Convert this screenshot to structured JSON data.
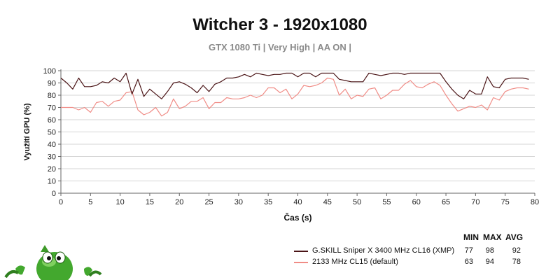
{
  "title": "Witcher 3 - 1920x1080",
  "subtitle": "GTX 1080 Ti | Very High | AA ON |",
  "legend": {
    "headers": [
      "MIN",
      "MAX",
      "AVG"
    ],
    "rows": [
      {
        "name": "G.SKILL Sniper X 3400 MHz CL16 (XMP)",
        "min": "77",
        "max": "98",
        "avg": "92",
        "color": "#4a1416"
      },
      {
        "name": "2133 MHz CL15 (default)",
        "min": "63",
        "max": "94",
        "avg": "78",
        "color": "#f08c86"
      }
    ]
  },
  "mascot_icon": "green-cartoon-mascot",
  "chart_data": {
    "type": "line",
    "xlabel": "Čas (s)",
    "ylabel": "Využití GPU (%)",
    "xlim": [
      0,
      80
    ],
    "ylim": [
      0,
      100
    ],
    "xticks": [
      0,
      5,
      10,
      15,
      20,
      25,
      30,
      35,
      40,
      45,
      50,
      55,
      60,
      65,
      70,
      75,
      80
    ],
    "yticks": [
      0,
      10,
      20,
      30,
      40,
      50,
      60,
      70,
      80,
      90,
      100
    ],
    "grid": true,
    "legend_position": "bottom-right",
    "series": [
      {
        "name": "G.SKILL Sniper X 3400 MHz CL16 (XMP)",
        "color": "#4a1416",
        "x": [
          0,
          1,
          2,
          3,
          4,
          5,
          6,
          7,
          8,
          9,
          10,
          11,
          12,
          13,
          14,
          15,
          16,
          17,
          18,
          19,
          20,
          21,
          22,
          23,
          24,
          25,
          26,
          27,
          28,
          29,
          30,
          31,
          32,
          33,
          34,
          35,
          36,
          37,
          38,
          39,
          40,
          41,
          42,
          43,
          44,
          45,
          46,
          47,
          48,
          49,
          50,
          51,
          52,
          53,
          54,
          55,
          56,
          57,
          58,
          59,
          60,
          61,
          62,
          63,
          64,
          65,
          66,
          67,
          68,
          69,
          70,
          71,
          72,
          73,
          74,
          75,
          76,
          77,
          78,
          79
        ],
        "values": [
          94,
          90,
          85,
          94,
          87,
          87,
          88,
          91,
          90,
          94,
          91,
          98,
          81,
          93,
          79,
          85,
          81,
          77,
          83,
          90,
          91,
          89,
          86,
          82,
          88,
          83,
          89,
          91,
          94,
          94,
          95,
          97,
          95,
          98,
          97,
          96,
          97,
          97,
          98,
          98,
          95,
          98,
          98,
          95,
          98,
          98,
          98,
          93,
          92,
          91,
          91,
          91,
          98,
          97,
          96,
          97,
          98,
          98,
          97,
          98,
          98,
          98,
          98,
          98,
          98,
          91,
          85,
          80,
          77,
          84,
          81,
          81,
          95,
          87,
          86,
          93,
          94,
          94,
          94,
          93
        ]
      },
      {
        "name": "2133 MHz CL15 (default)",
        "color": "#f08c86",
        "x": [
          0,
          1,
          2,
          3,
          4,
          5,
          6,
          7,
          8,
          9,
          10,
          11,
          12,
          13,
          14,
          15,
          16,
          17,
          18,
          19,
          20,
          21,
          22,
          23,
          24,
          25,
          26,
          27,
          28,
          29,
          30,
          31,
          32,
          33,
          34,
          35,
          36,
          37,
          38,
          39,
          40,
          41,
          42,
          43,
          44,
          45,
          46,
          47,
          48,
          49,
          50,
          51,
          52,
          53,
          54,
          55,
          56,
          57,
          58,
          59,
          60,
          61,
          62,
          63,
          64,
          65,
          66,
          67,
          68,
          69,
          70,
          71,
          72,
          73,
          74,
          75,
          76,
          77,
          78,
          79
        ],
        "values": [
          70,
          70,
          70,
          68,
          70,
          66,
          74,
          75,
          71,
          75,
          76,
          82,
          83,
          68,
          64,
          66,
          70,
          63,
          66,
          77,
          69,
          71,
          75,
          75,
          78,
          69,
          74,
          74,
          78,
          77,
          77,
          78,
          80,
          78,
          80,
          86,
          86,
          82,
          85,
          77,
          81,
          88,
          87,
          88,
          90,
          94,
          93,
          80,
          85,
          77,
          80,
          79,
          85,
          86,
          77,
          80,
          84,
          84,
          89,
          92,
          87,
          86,
          89,
          91,
          88,
          80,
          73,
          67,
          69,
          71,
          70,
          72,
          68,
          78,
          76,
          83,
          85,
          86,
          86,
          85
        ]
      }
    ]
  }
}
